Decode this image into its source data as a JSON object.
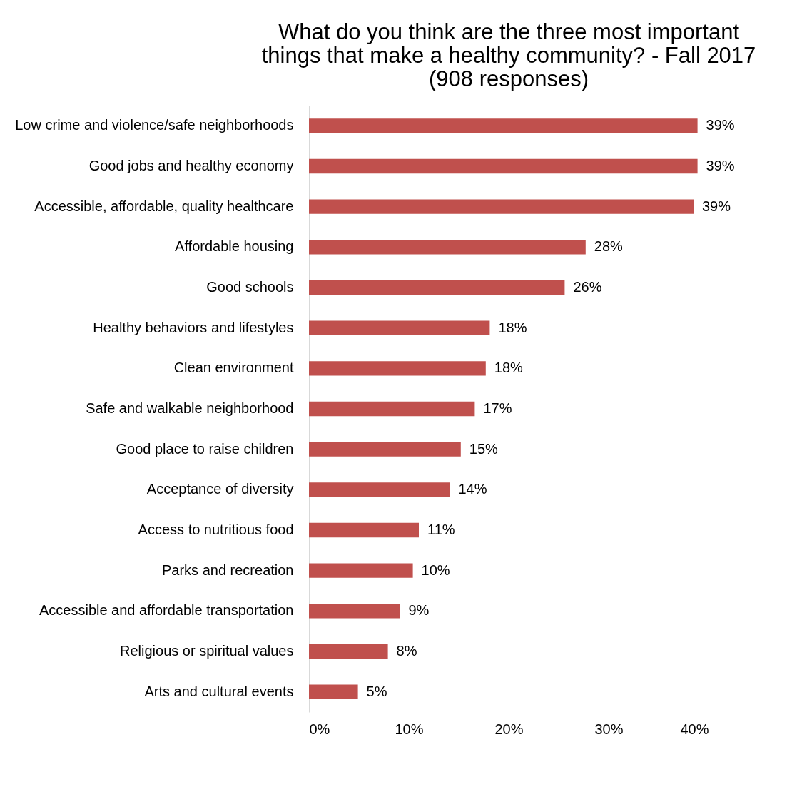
{
  "chart_data": {
    "type": "bar",
    "orientation": "horizontal",
    "title": "What do you think are the three most important\nthings that make a healthy community? - Fall 2017\n(908 responses)",
    "categories": [
      "Low crime and violence/safe neighborhoods",
      "Good jobs and healthy economy",
      "Accessible, affordable, quality healthcare",
      "Affordable housing",
      "Good schools",
      "Healthy behaviors and lifestyles",
      "Clean environment",
      "Safe and walkable neighborhood",
      "Good place to raise children",
      "Acceptance of diversity",
      "Access to nutritious food",
      "Parks and recreation",
      "Accessible and affordable transportation",
      "Religious or spiritual values",
      "Arts and cultural events"
    ],
    "values": [
      38.9,
      38.9,
      38.5,
      27.7,
      25.6,
      18.1,
      17.7,
      16.6,
      15.2,
      14.1,
      11.0,
      10.4,
      9.1,
      7.9,
      4.9
    ],
    "value_labels": [
      "39%",
      "39%",
      "39%",
      "28%",
      "26%",
      "18%",
      "18%",
      "17%",
      "15%",
      "14%",
      "11%",
      "10%",
      "9%",
      "8%",
      "5%"
    ],
    "color": "#c0504d",
    "xlim": [
      0,
      40
    ],
    "xticks": [
      {
        "value": 0,
        "label": "0%"
      },
      {
        "value": 10,
        "label": "10%"
      },
      {
        "value": 20,
        "label": "20%"
      },
      {
        "value": 30,
        "label": "30%"
      },
      {
        "value": 40,
        "label": "40%"
      }
    ],
    "grid": false
  }
}
